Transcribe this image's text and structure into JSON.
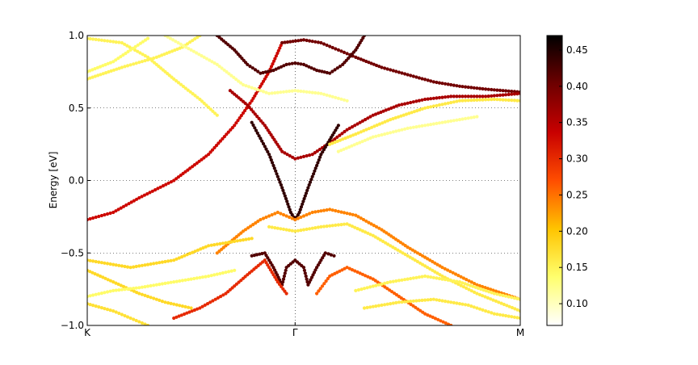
{
  "chart_data": {
    "type": "scatter",
    "title": "",
    "xlabel": "",
    "ylabel": "Energy [eV]",
    "ylim": [
      -1.0,
      1.0
    ],
    "xlim": [
      0,
      1
    ],
    "x_ticks": [
      {
        "pos": 0.0,
        "label": "K"
      },
      {
        "pos": 0.48,
        "label": "Γ"
      },
      {
        "pos": 1.0,
        "label": "M"
      }
    ],
    "y_ticks": [
      {
        "value": 1.0,
        "label": "1.0"
      },
      {
        "value": 0.5,
        "label": "0.5"
      },
      {
        "value": 0.0,
        "label": "0.0"
      },
      {
        "value": -0.5,
        "label": "−0.5"
      },
      {
        "value": -1.0,
        "label": "−1.0"
      }
    ],
    "grid": true,
    "colorbar": {
      "min": 0.07,
      "max": 0.47,
      "ticks": [
        "0.10",
        "0.15",
        "0.20",
        "0.25",
        "0.30",
        "0.35",
        "0.40",
        "0.45"
      ],
      "tick_values": [
        0.1,
        0.15,
        0.2,
        0.25,
        0.3,
        0.35,
        0.4,
        0.45
      ],
      "colormap": "hot_r",
      "colors": [
        "#ffffff",
        "#ffff6e",
        "#ffc400",
        "#ff4d00",
        "#c80000",
        "#6e0000",
        "#000000"
      ]
    },
    "series": [
      {
        "points": [
          [
            0.0,
            -0.27
          ],
          [
            0.06,
            -0.22
          ],
          [
            0.12,
            -0.12
          ],
          [
            0.2,
            0.0
          ],
          [
            0.28,
            0.18
          ],
          [
            0.34,
            0.38
          ],
          [
            0.38,
            0.55
          ],
          [
            0.42,
            0.75
          ],
          [
            0.45,
            0.95
          ]
        ],
        "weight": 0.33
      },
      {
        "points": [
          [
            0.45,
            0.95
          ],
          [
            0.5,
            0.97
          ],
          [
            0.54,
            0.95
          ],
          [
            0.58,
            0.9
          ],
          [
            0.62,
            0.85
          ],
          [
            0.68,
            0.78
          ],
          [
            0.74,
            0.73
          ],
          [
            0.8,
            0.68
          ],
          [
            0.86,
            0.65
          ],
          [
            0.92,
            0.63
          ],
          [
            1.0,
            0.61
          ]
        ],
        "weight": 0.4
      },
      {
        "points": [
          [
            0.3,
            1.0
          ],
          [
            0.34,
            0.9
          ],
          [
            0.37,
            0.8
          ],
          [
            0.4,
            0.74
          ],
          [
            0.43,
            0.76
          ],
          [
            0.46,
            0.8
          ],
          [
            0.48,
            0.81
          ],
          [
            0.5,
            0.8
          ],
          [
            0.53,
            0.76
          ],
          [
            0.56,
            0.74
          ],
          [
            0.59,
            0.8
          ],
          [
            0.62,
            0.9
          ],
          [
            0.64,
            1.0
          ]
        ],
        "weight": 0.42
      },
      {
        "points": [
          [
            0.33,
            0.62
          ],
          [
            0.37,
            0.52
          ],
          [
            0.41,
            0.38
          ],
          [
            0.45,
            0.2
          ],
          [
            0.48,
            0.15
          ],
          [
            0.52,
            0.18
          ],
          [
            0.56,
            0.26
          ],
          [
            0.6,
            0.35
          ],
          [
            0.66,
            0.45
          ],
          [
            0.72,
            0.52
          ],
          [
            0.78,
            0.56
          ],
          [
            0.84,
            0.58
          ],
          [
            0.92,
            0.58
          ],
          [
            1.0,
            0.6
          ]
        ],
        "weight": 0.36
      },
      {
        "points": [
          [
            0.38,
            0.4
          ],
          [
            0.42,
            0.18
          ],
          [
            0.45,
            -0.05
          ],
          [
            0.47,
            -0.22
          ],
          [
            0.48,
            -0.27
          ],
          [
            0.49,
            -0.22
          ],
          [
            0.51,
            -0.05
          ],
          [
            0.54,
            0.18
          ],
          [
            0.58,
            0.38
          ]
        ],
        "weight": 0.44
      },
      {
        "points": [
          [
            0.3,
            -0.5
          ],
          [
            0.36,
            -0.35
          ],
          [
            0.4,
            -0.27
          ],
          [
            0.44,
            -0.22
          ],
          [
            0.48,
            -0.27
          ],
          [
            0.52,
            -0.22
          ],
          [
            0.56,
            -0.2
          ],
          [
            0.62,
            -0.24
          ],
          [
            0.68,
            -0.34
          ],
          [
            0.74,
            -0.46
          ],
          [
            0.82,
            -0.6
          ],
          [
            0.9,
            -0.72
          ],
          [
            1.0,
            -0.82
          ]
        ],
        "weight": 0.24
      },
      {
        "points": [
          [
            0.0,
            -0.55
          ],
          [
            0.1,
            -0.6
          ],
          [
            0.2,
            -0.55
          ],
          [
            0.28,
            -0.45
          ],
          [
            0.34,
            -0.42
          ],
          [
            0.38,
            -0.4
          ]
        ],
        "weight": 0.18
      },
      {
        "points": [
          [
            0.38,
            -0.52
          ],
          [
            0.41,
            -0.5
          ],
          [
            0.43,
            -0.6
          ],
          [
            0.45,
            -0.72
          ],
          [
            0.46,
            -0.6
          ],
          [
            0.48,
            -0.55
          ],
          [
            0.5,
            -0.6
          ],
          [
            0.51,
            -0.72
          ],
          [
            0.53,
            -0.6
          ],
          [
            0.55,
            -0.5
          ],
          [
            0.57,
            -0.52
          ]
        ],
        "weight": 0.42
      },
      {
        "points": [
          [
            0.2,
            -0.95
          ],
          [
            0.26,
            -0.88
          ],
          [
            0.32,
            -0.78
          ],
          [
            0.37,
            -0.65
          ],
          [
            0.41,
            -0.55
          ],
          [
            0.44,
            -0.7
          ],
          [
            0.46,
            -0.78
          ]
        ],
        "weight": 0.3
      },
      {
        "points": [
          [
            0.53,
            -0.78
          ],
          [
            0.56,
            -0.66
          ],
          [
            0.6,
            -0.6
          ],
          [
            0.66,
            -0.68
          ],
          [
            0.72,
            -0.8
          ],
          [
            0.78,
            -0.92
          ],
          [
            0.84,
            -1.0
          ]
        ],
        "weight": 0.26
      },
      {
        "points": [
          [
            0.0,
            0.98
          ],
          [
            0.08,
            0.95
          ],
          [
            0.14,
            0.85
          ],
          [
            0.2,
            0.7
          ],
          [
            0.26,
            0.56
          ],
          [
            0.3,
            0.45
          ]
        ],
        "weight": 0.15
      },
      {
        "points": [
          [
            0.0,
            0.75
          ],
          [
            0.06,
            0.82
          ],
          [
            0.1,
            0.9
          ],
          [
            0.14,
            0.98
          ]
        ],
        "weight": 0.14
      },
      {
        "points": [
          [
            0.0,
            0.7
          ],
          [
            0.08,
            0.78
          ],
          [
            0.16,
            0.85
          ],
          [
            0.22,
            0.92
          ],
          [
            0.26,
            1.0
          ]
        ],
        "weight": 0.15
      },
      {
        "points": [
          [
            0.18,
            1.0
          ],
          [
            0.24,
            0.9
          ],
          [
            0.3,
            0.8
          ],
          [
            0.36,
            0.66
          ],
          [
            0.42,
            0.6
          ],
          [
            0.48,
            0.62
          ],
          [
            0.54,
            0.6
          ],
          [
            0.6,
            0.55
          ]
        ],
        "weight": 0.12
      },
      {
        "points": [
          [
            0.56,
            0.25
          ],
          [
            0.62,
            0.32
          ],
          [
            0.7,
            0.42
          ],
          [
            0.78,
            0.5
          ],
          [
            0.86,
            0.55
          ],
          [
            0.94,
            0.56
          ],
          [
            1.0,
            0.55
          ]
        ],
        "weight": 0.16
      },
      {
        "points": [
          [
            0.58,
            0.2
          ],
          [
            0.66,
            0.3
          ],
          [
            0.74,
            0.36
          ],
          [
            0.82,
            0.4
          ],
          [
            0.9,
            0.44
          ]
        ],
        "weight": 0.12
      },
      {
        "points": [
          [
            0.42,
            -0.32
          ],
          [
            0.48,
            -0.35
          ],
          [
            0.54,
            -0.32
          ],
          [
            0.6,
            -0.3
          ],
          [
            0.66,
            -0.38
          ],
          [
            0.74,
            -0.52
          ],
          [
            0.82,
            -0.66
          ],
          [
            0.9,
            -0.78
          ],
          [
            1.0,
            -0.9
          ]
        ],
        "weight": 0.16
      },
      {
        "points": [
          [
            0.0,
            -0.62
          ],
          [
            0.06,
            -0.7
          ],
          [
            0.12,
            -0.78
          ],
          [
            0.18,
            -0.84
          ],
          [
            0.24,
            -0.88
          ]
        ],
        "weight": 0.18
      },
      {
        "points": [
          [
            0.0,
            -0.85
          ],
          [
            0.06,
            -0.9
          ],
          [
            0.1,
            -0.95
          ],
          [
            0.14,
            -1.0
          ]
        ],
        "weight": 0.17
      },
      {
        "points": [
          [
            0.0,
            -0.8
          ],
          [
            0.06,
            -0.76
          ],
          [
            0.12,
            -0.74
          ],
          [
            0.2,
            -0.7
          ],
          [
            0.28,
            -0.66
          ],
          [
            0.34,
            -0.62
          ]
        ],
        "weight": 0.14
      },
      {
        "points": [
          [
            0.62,
            -0.76
          ],
          [
            0.7,
            -0.7
          ],
          [
            0.78,
            -0.66
          ],
          [
            0.86,
            -0.7
          ],
          [
            0.94,
            -0.78
          ],
          [
            1.0,
            -0.82
          ]
        ],
        "weight": 0.15
      },
      {
        "points": [
          [
            0.64,
            -0.88
          ],
          [
            0.72,
            -0.84
          ],
          [
            0.8,
            -0.82
          ],
          [
            0.88,
            -0.86
          ],
          [
            0.94,
            -0.92
          ],
          [
            1.0,
            -0.95
          ]
        ],
        "weight": 0.16
      }
    ]
  }
}
